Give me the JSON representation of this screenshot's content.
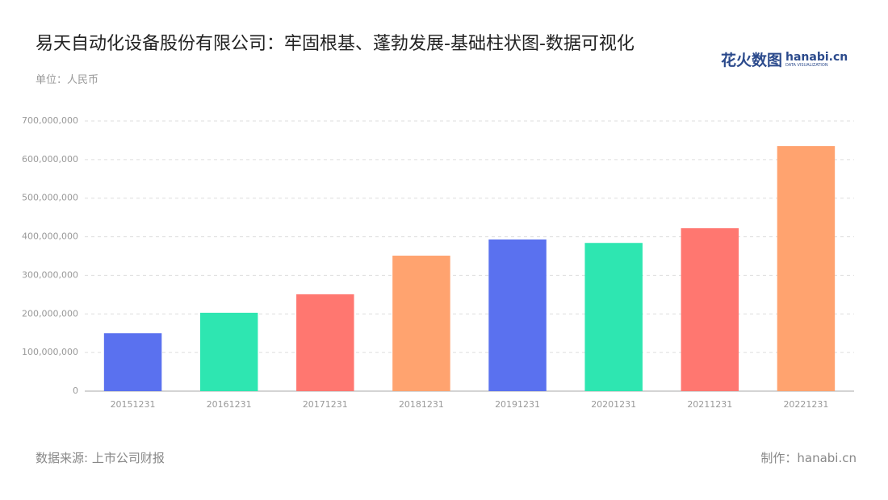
{
  "chart_data": {
    "type": "bar",
    "title": "易天自动化设备股份有限公司：牢固根基、蓬勃发展-基础柱状图-数据可视化",
    "subtitle": "单位：人民币",
    "source": "数据来源: 上市公司财报",
    "credit": "制作：hanabi.cn",
    "logo": {
      "brand": "花火数图",
      "site": "hanabi.cn",
      "tagline": "DATA VISUALIZATION"
    },
    "categories": [
      "20151231",
      "20161231",
      "20171231",
      "20181231",
      "20191231",
      "20201231",
      "20211231",
      "20221231"
    ],
    "values": [
      150000000,
      203000000,
      251000000,
      351000000,
      393000000,
      384000000,
      422000000,
      635000000
    ],
    "colors": [
      "#5a71ef",
      "#2ee6b1",
      "#ff7770",
      "#ffa36f",
      "#5a71ef",
      "#2ee6b1",
      "#ff7770",
      "#ffa36f"
    ],
    "ylim": [
      0,
      700000000
    ],
    "yticks": [
      0,
      {
        "value": 100000000,
        "label": "100,000,000"
      },
      {
        "value": 200000000,
        "label": "200,000,000"
      },
      {
        "value": 300000000,
        "label": "300,000,000"
      },
      {
        "value": 400000000,
        "label": "400,000,000"
      },
      {
        "value": 500000000,
        "label": "500,000,000"
      },
      {
        "value": 600000000,
        "label": "600,000,000"
      },
      {
        "value": 700000000,
        "label": "700,000,000"
      }
    ],
    "grid": true
  }
}
